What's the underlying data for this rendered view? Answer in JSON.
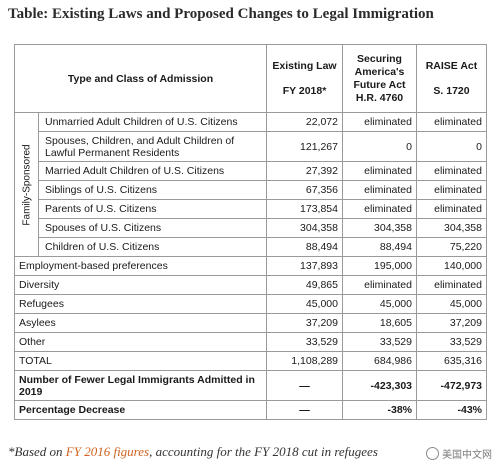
{
  "title": "Table: Existing Laws and Proposed Changes to Legal Immigration",
  "headers": {
    "type": "Type and Class of Admission",
    "existing_name": "Existing Law",
    "existing_year": "FY 2018*",
    "securing_name_1": "Securing",
    "securing_name_2": "America's",
    "securing_name_3": "Future Act",
    "securing_bill": "H.R. 4760",
    "raise_name": "RAISE Act",
    "raise_bill": "S. 1720"
  },
  "group_label": "Family-Sponsored",
  "family_rows": [
    {
      "label": "Unmarried Adult Children of U.S. Citizens",
      "existing": "22,072",
      "securing": "eliminated",
      "raise": "eliminated"
    },
    {
      "label": "Spouses, Children, and Adult Children of Lawful Permanent Residents",
      "existing": "121,267",
      "securing": "0",
      "raise": "0"
    },
    {
      "label": "Married Adult Children of U.S. Citizens",
      "existing": "27,392",
      "securing": "eliminated",
      "raise": "eliminated"
    },
    {
      "label": "Siblings of U.S. Citizens",
      "existing": "67,356",
      "securing": "eliminated",
      "raise": "eliminated"
    },
    {
      "label": "Parents of U.S. Citizens",
      "existing": "173,854",
      "securing": "eliminated",
      "raise": "eliminated"
    },
    {
      "label": "Spouses of U.S. Citizens",
      "existing": "304,358",
      "securing": "304,358",
      "raise": "304,358"
    },
    {
      "label": "Children of U.S. Citizens",
      "existing": "88,494",
      "securing": "88,494",
      "raise": "75,220"
    }
  ],
  "other_rows": [
    {
      "label": "Employment-based preferences",
      "existing": "137,893",
      "securing": "195,000",
      "raise": "140,000"
    },
    {
      "label": "Diversity",
      "existing": "49,865",
      "securing": "eliminated",
      "raise": "eliminated"
    },
    {
      "label": "Refugees",
      "existing": "45,000",
      "securing": "45,000",
      "raise": "45,000"
    },
    {
      "label": "Asylees",
      "existing": "37,209",
      "securing": "18,605",
      "raise": "37,209"
    },
    {
      "label": "Other",
      "existing": "33,529",
      "securing": "33,529",
      "raise": "33,529"
    },
    {
      "label": "TOTAL",
      "existing": "1,108,289",
      "securing": "684,986",
      "raise": "635,316"
    }
  ],
  "summary_rows": [
    {
      "label": "Number of Fewer Legal Immigrants Admitted in 2019",
      "existing": "—",
      "securing": "-423,303",
      "raise": "-472,973"
    },
    {
      "label": "Percentage Decrease",
      "existing": "—",
      "securing": "-38%",
      "raise": "-43%"
    }
  ],
  "footnote": {
    "prefix": "*Based on ",
    "link": "FY 2016 figures",
    "suffix": ", accounting for the FY 2018 cut in refugees"
  },
  "watermark": "美国中文网"
}
